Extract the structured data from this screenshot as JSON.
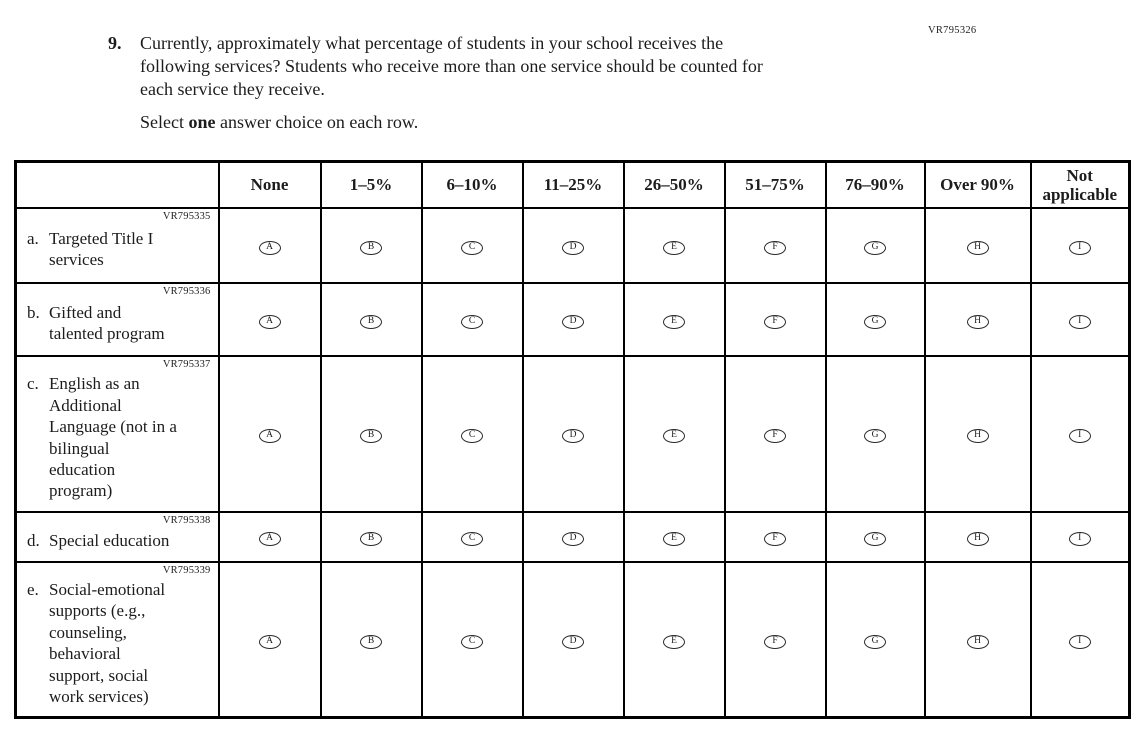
{
  "page": {
    "form_code": "VR795326",
    "question_number": "9.",
    "question_text": "Currently, approximately what percentage of students in your school receives the following services? Students who receive more than one service should be counted for each service they receive.",
    "instruction": {
      "prefix": "Select ",
      "bold": "one",
      "suffix": " answer choice on each row."
    }
  },
  "table": {
    "columns": [
      "None",
      "1–5%",
      "6–10%",
      "11–25%",
      "26–50%",
      "51–75%",
      "76–90%",
      "Over 90%",
      "Not applicable"
    ],
    "option_letters": [
      "A",
      "B",
      "C",
      "D",
      "E",
      "F",
      "G",
      "H",
      "I"
    ],
    "rows": [
      {
        "code": "VR795335",
        "letter": "a.",
        "label": "Targeted Title I services"
      },
      {
        "code": "VR795336",
        "letter": "b.",
        "label": "Gifted and talented program"
      },
      {
        "code": "VR795337",
        "letter": "c.",
        "label": "English as an Additional Language (not in a bilingual education program)"
      },
      {
        "code": "VR795338",
        "letter": "d.",
        "label": "Special education"
      },
      {
        "code": "VR795339",
        "letter": "e.",
        "label": "Social-emotional supports (e.g., counseling, behavioral support, social work services)"
      }
    ]
  }
}
